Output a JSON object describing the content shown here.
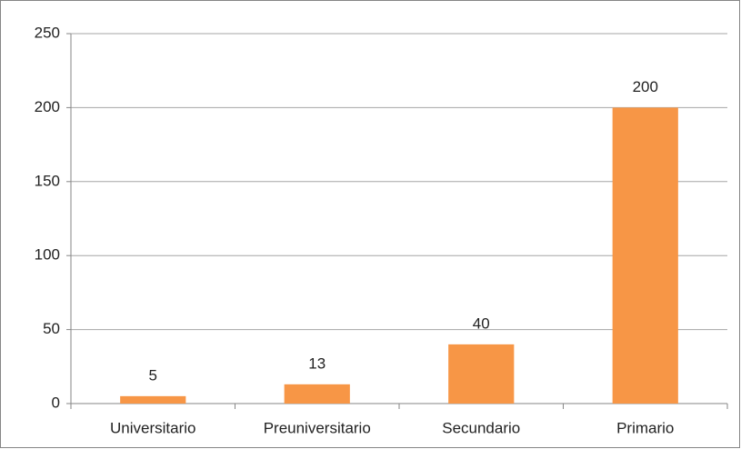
{
  "chart_data": {
    "type": "bar",
    "categories": [
      "Universitario",
      "Preuniversitario",
      "Secundario",
      "Primario"
    ],
    "values": [
      5,
      13,
      40,
      200
    ],
    "color": "#f79646",
    "ylim": [
      0,
      250
    ],
    "yticks": [
      0,
      50,
      100,
      150,
      200,
      250
    ],
    "grid": true,
    "data_labels": true
  }
}
